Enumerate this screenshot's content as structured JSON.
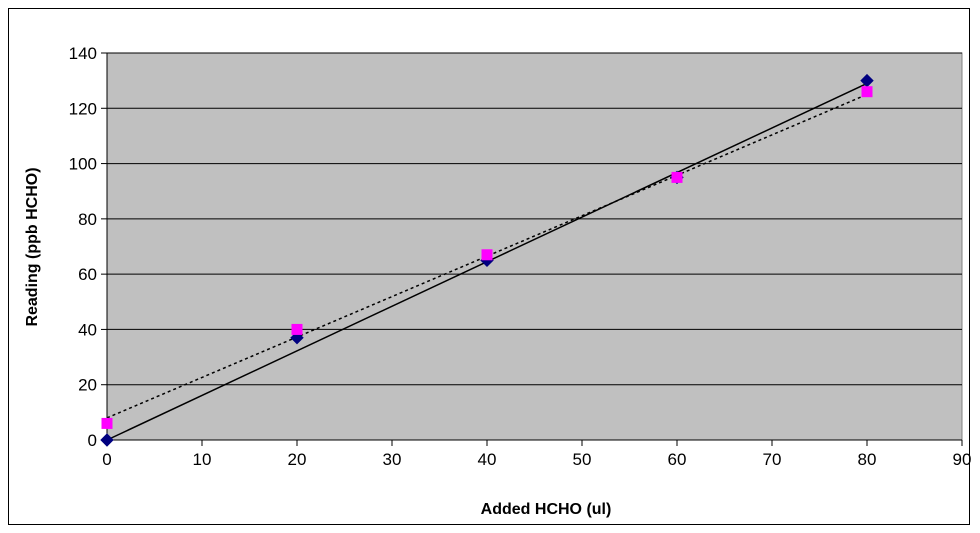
{
  "chart_data": {
    "type": "scatter",
    "title": "",
    "xlabel": "Added HCHO (ul)",
    "ylabel": "Reading (ppb HCHO)",
    "xlim": [
      0,
      90
    ],
    "ylim": [
      0,
      140
    ],
    "x_ticks": [
      0,
      10,
      20,
      30,
      40,
      50,
      60,
      70,
      80,
      90
    ],
    "y_ticks": [
      0,
      20,
      40,
      60,
      80,
      100,
      120,
      140
    ],
    "grid": {
      "horizontal": true,
      "vertical": false
    },
    "legend": "none",
    "plot_background": "#c0c0c0",
    "series": [
      {
        "marker": "diamond",
        "color": "#000080",
        "x": [
          0,
          20,
          40,
          60,
          80
        ],
        "y": [
          0,
          37,
          65,
          95,
          130
        ],
        "trendline": {
          "style": "solid",
          "color": "#000000",
          "from": [
            0,
            0
          ],
          "to": [
            80,
            129
          ]
        }
      },
      {
        "marker": "square",
        "color": "#ff00ff",
        "x": [
          0,
          20,
          40,
          60,
          80
        ],
        "y": [
          6,
          40,
          67,
          95,
          126
        ],
        "trendline": {
          "style": "dotted",
          "color": "#000000",
          "from": [
            0,
            8
          ],
          "to": [
            80,
            125
          ]
        }
      }
    ]
  }
}
